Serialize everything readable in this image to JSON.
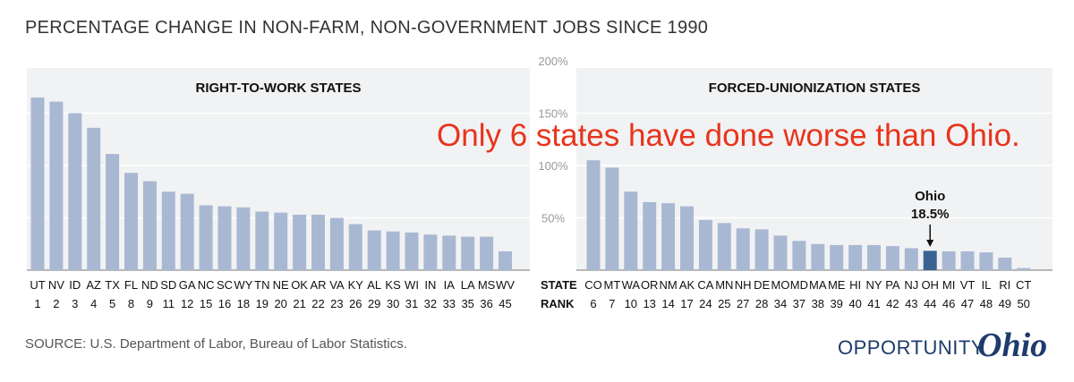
{
  "title": "PERCENTAGE CHANGE IN NON-FARM, NON-GOVERNMENT JOBS SINCE 1990",
  "callout": "Only 6 states have done worse than Ohio.",
  "source": "SOURCE: U.S. Department of Labor, Bureau of Labor Statistics.",
  "logo": {
    "word1": "OPPORTUNITY",
    "word2": "Ohio"
  },
  "colors": {
    "bar": "#a9b8d2",
    "highlight": "#3a6391",
    "panel": "#f1f2f3",
    "callout": "#e8341c"
  },
  "chart_data": {
    "type": "bar",
    "yaxis": {
      "min": 0,
      "max": 200,
      "ticks": [
        "50%",
        "100%",
        "150%",
        "200%"
      ],
      "tick_values": [
        50,
        100,
        150,
        200
      ]
    },
    "row_labels": {
      "state": "STATE",
      "rank": "RANK"
    },
    "highlight": {
      "state": "OH",
      "label_name": "Ohio",
      "label_value": "18.5%"
    },
    "panels": [
      {
        "title": "RIGHT-TO-WORK STATES",
        "bars": [
          {
            "state": "UT",
            "rank": "1",
            "value": 165
          },
          {
            "state": "NV",
            "rank": "2",
            "value": 161
          },
          {
            "state": "ID",
            "rank": "3",
            "value": 150
          },
          {
            "state": "AZ",
            "rank": "4",
            "value": 136
          },
          {
            "state": "TX",
            "rank": "5",
            "value": 111
          },
          {
            "state": "FL",
            "rank": "8",
            "value": 93
          },
          {
            "state": "ND",
            "rank": "9",
            "value": 85
          },
          {
            "state": "SD",
            "rank": "11",
            "value": 75
          },
          {
            "state": "GA",
            "rank": "12",
            "value": 73
          },
          {
            "state": "NC",
            "rank": "15",
            "value": 62
          },
          {
            "state": "SC",
            "rank": "16",
            "value": 61
          },
          {
            "state": "WY",
            "rank": "18",
            "value": 60
          },
          {
            "state": "TN",
            "rank": "19",
            "value": 56
          },
          {
            "state": "NE",
            "rank": "20",
            "value": 55
          },
          {
            "state": "OK",
            "rank": "21",
            "value": 53
          },
          {
            "state": "AR",
            "rank": "22",
            "value": 53
          },
          {
            "state": "VA",
            "rank": "23",
            "value": 50
          },
          {
            "state": "KY",
            "rank": "26",
            "value": 44
          },
          {
            "state": "AL",
            "rank": "29",
            "value": 38
          },
          {
            "state": "KS",
            "rank": "30",
            "value": 37
          },
          {
            "state": "WI",
            "rank": "31",
            "value": 36
          },
          {
            "state": "IN",
            "rank": "32",
            "value": 34
          },
          {
            "state": "IA",
            "rank": "33",
            "value": 33
          },
          {
            "state": "LA",
            "rank": "35",
            "value": 32
          },
          {
            "state": "MS",
            "rank": "36",
            "value": 32
          },
          {
            "state": "WV",
            "rank": "45",
            "value": 18
          }
        ]
      },
      {
        "title": "FORCED-UNIONIZATION STATES",
        "bars": [
          {
            "state": "CO",
            "rank": "6",
            "value": 105
          },
          {
            "state": "MT",
            "rank": "7",
            "value": 98
          },
          {
            "state": "WA",
            "rank": "10",
            "value": 75
          },
          {
            "state": "OR",
            "rank": "13",
            "value": 65
          },
          {
            "state": "NM",
            "rank": "14",
            "value": 64
          },
          {
            "state": "AK",
            "rank": "17",
            "value": 61
          },
          {
            "state": "CA",
            "rank": "24",
            "value": 48
          },
          {
            "state": "MN",
            "rank": "25",
            "value": 45
          },
          {
            "state": "NH",
            "rank": "27",
            "value": 40
          },
          {
            "state": "DE",
            "rank": "28",
            "value": 39
          },
          {
            "state": "MO",
            "rank": "34",
            "value": 33
          },
          {
            "state": "MD",
            "rank": "37",
            "value": 28
          },
          {
            "state": "MA",
            "rank": "38",
            "value": 25
          },
          {
            "state": "ME",
            "rank": "39",
            "value": 24
          },
          {
            "state": "HI",
            "rank": "40",
            "value": 24
          },
          {
            "state": "NY",
            "rank": "41",
            "value": 24
          },
          {
            "state": "PA",
            "rank": "42",
            "value": 23
          },
          {
            "state": "NJ",
            "rank": "43",
            "value": 21
          },
          {
            "state": "OH",
            "rank": "44",
            "value": 18.5
          },
          {
            "state": "MI",
            "rank": "46",
            "value": 18
          },
          {
            "state": "VT",
            "rank": "47",
            "value": 18
          },
          {
            "state": "IL",
            "rank": "48",
            "value": 17
          },
          {
            "state": "RI",
            "rank": "49",
            "value": 12
          },
          {
            "state": "CT",
            "rank": "50",
            "value": 2
          }
        ]
      }
    ]
  }
}
